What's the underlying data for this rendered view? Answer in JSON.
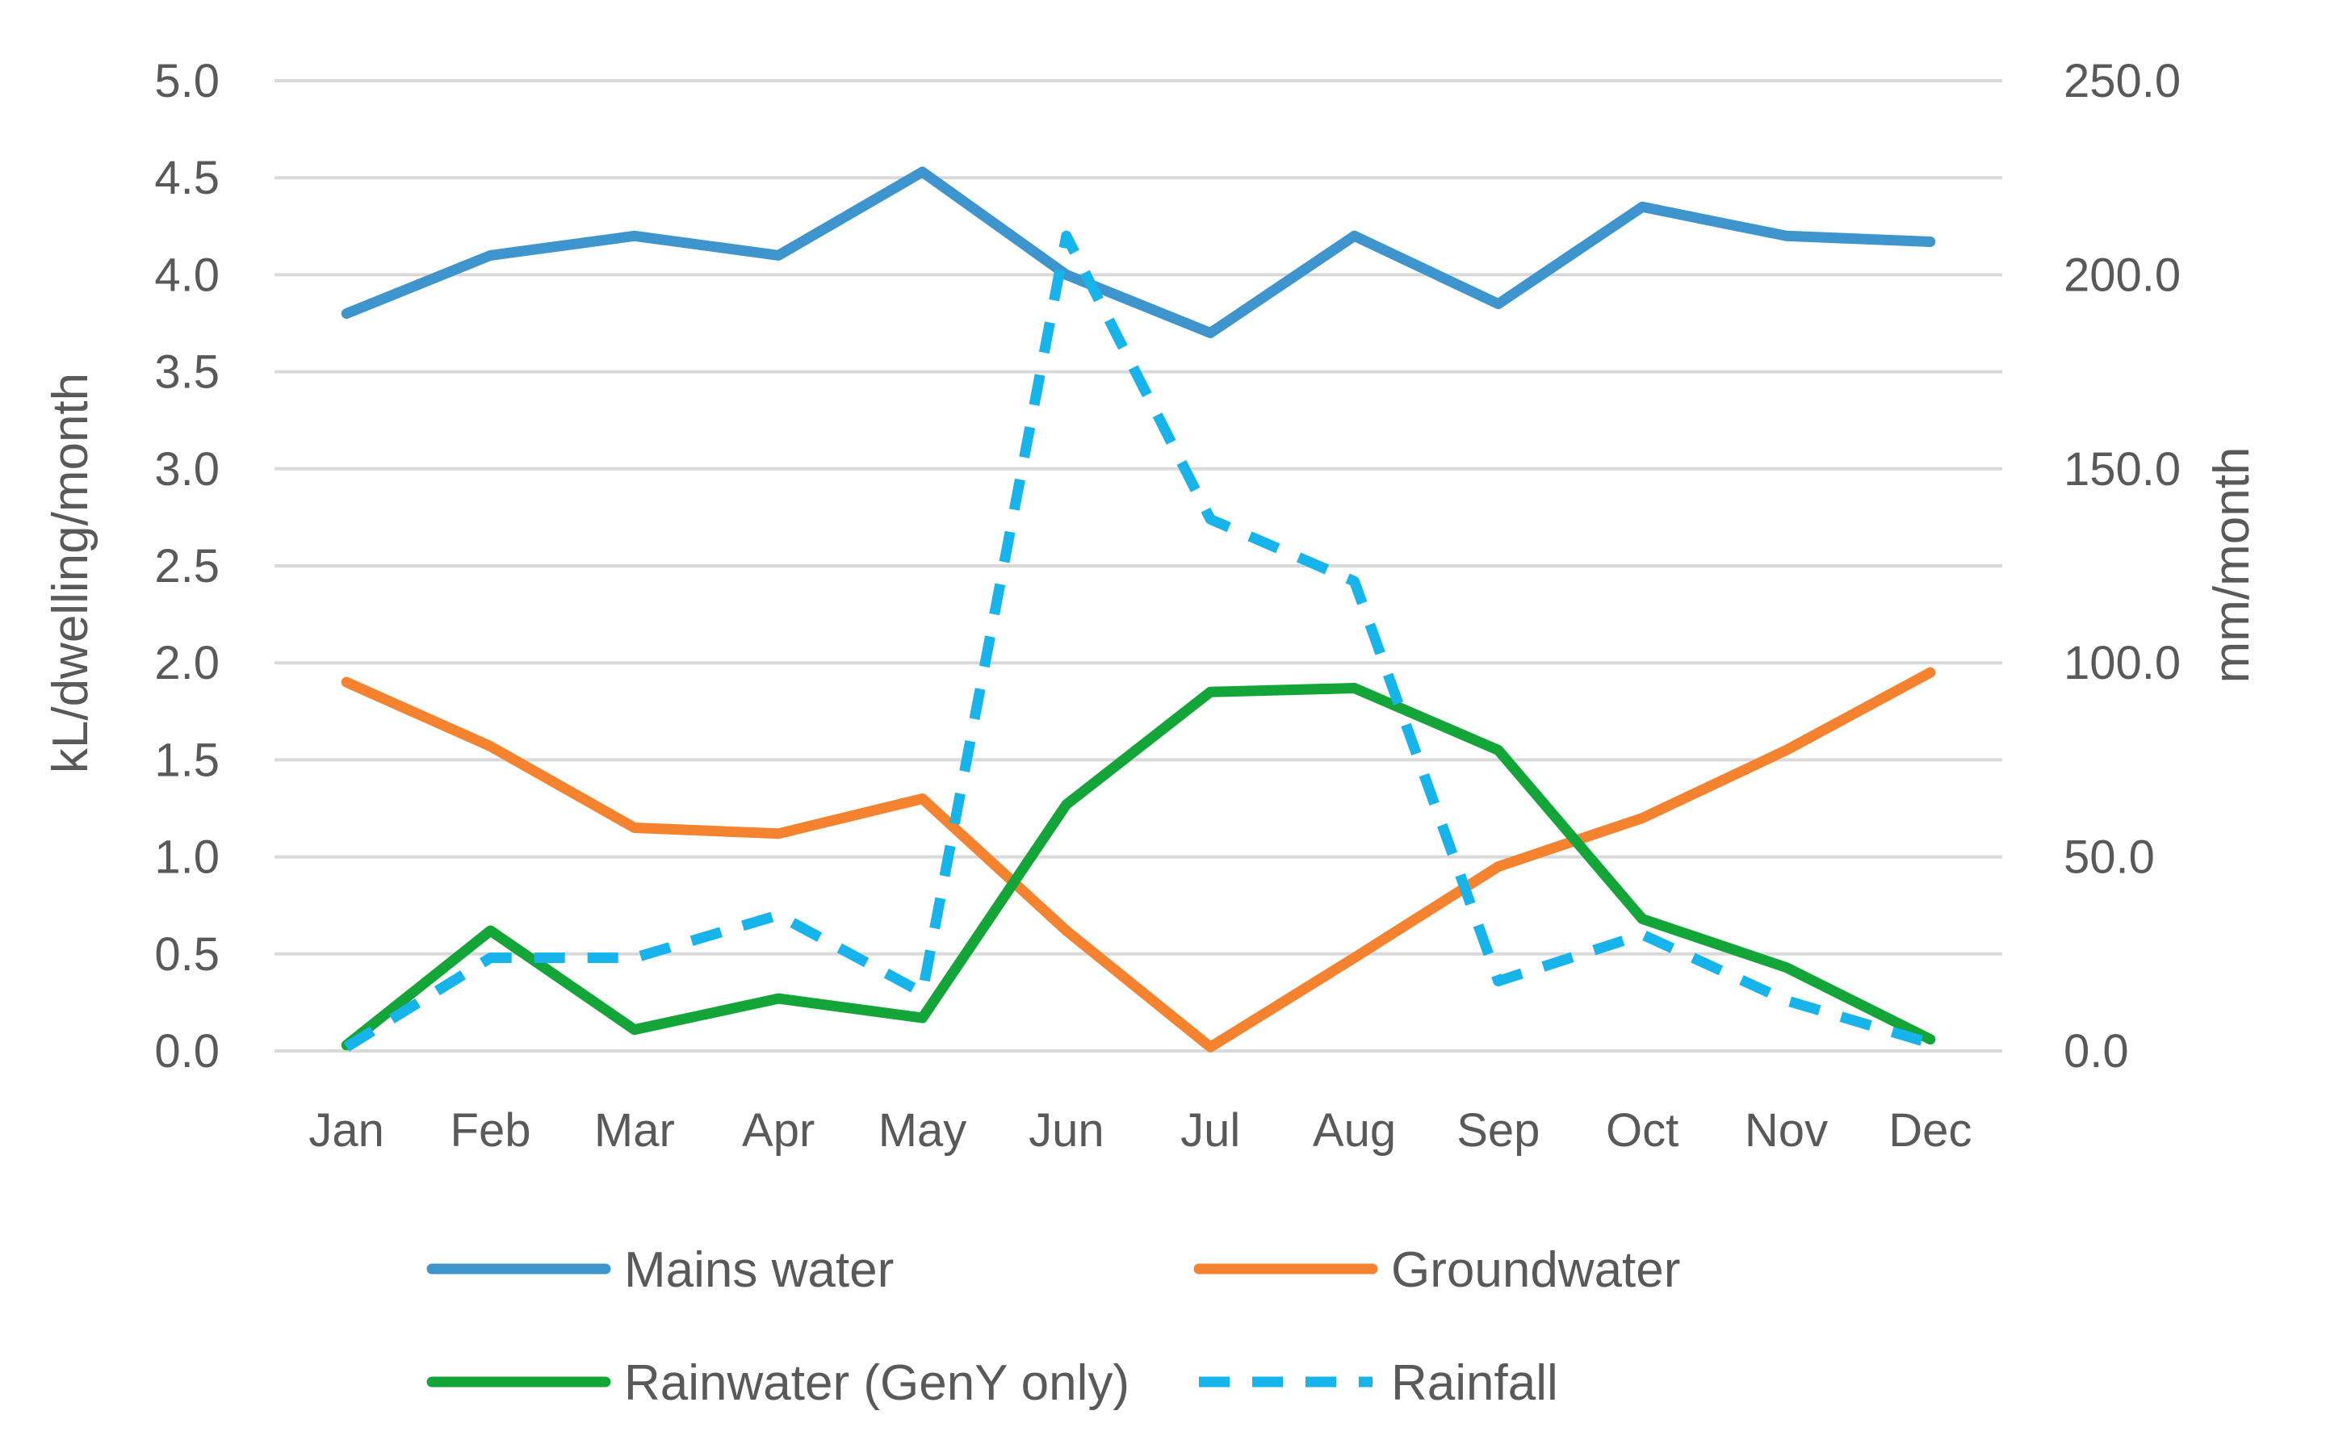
{
  "chart_data": {
    "type": "line",
    "title": "",
    "categories": [
      "Jan",
      "Feb",
      "Mar",
      "Apr",
      "May",
      "Jun",
      "Jul",
      "Aug",
      "Sep",
      "Oct",
      "Nov",
      "Dec"
    ],
    "y_left": {
      "label": "kL/dwelling/month",
      "ylim": [
        0,
        5
      ],
      "ticks": [
        "0.0",
        "0.5",
        "1.0",
        "1.5",
        "2.0",
        "2.5",
        "3.0",
        "3.5",
        "4.0",
        "4.5",
        "5.0"
      ]
    },
    "y_right": {
      "label": "mm/month",
      "ylim": [
        0,
        250
      ],
      "ticks": [
        "0.0",
        "50.0",
        "100.0",
        "150.0",
        "200.0",
        "250.0"
      ]
    },
    "grid": true,
    "legend_position": "bottom",
    "series": [
      {
        "name": "Mains water",
        "axis": "left",
        "color": "#3E95CD",
        "dashed": false,
        "values": [
          3.8,
          4.1,
          4.2,
          4.1,
          4.53,
          4.0,
          3.7,
          4.2,
          3.85,
          4.35,
          4.2,
          4.17
        ]
      },
      {
        "name": "Groundwater",
        "axis": "left",
        "color": "#F4822F",
        "dashed": false,
        "values": [
          1.9,
          1.57,
          1.15,
          1.12,
          1.3,
          0.62,
          0.02,
          0.48,
          0.95,
          1.2,
          1.55,
          1.95
        ]
      },
      {
        "name": "Rainwater (GenY only)",
        "axis": "left",
        "color": "#13A538",
        "dashed": false,
        "values": [
          0.03,
          0.62,
          0.11,
          0.27,
          0.17,
          1.27,
          1.85,
          1.87,
          1.55,
          0.68,
          0.43,
          0.06
        ]
      },
      {
        "name": "Rainfall",
        "axis": "right",
        "color": "#16B4EB",
        "dashed": true,
        "values": [
          1,
          24,
          24,
          35,
          15,
          210,
          137,
          121,
          18,
          30,
          13,
          2
        ]
      }
    ]
  }
}
